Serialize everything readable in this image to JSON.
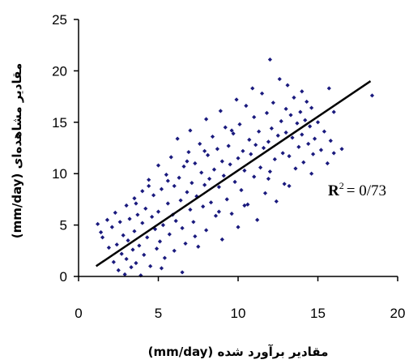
{
  "chart_data": {
    "type": "scatter",
    "title": "",
    "xlabel": "مقادیر برآورد شده (mm/day)",
    "ylabel": "مقادیر مشاهده‌ای (mm/day)",
    "xlim": [
      0,
      20
    ],
    "ylim": [
      0,
      25
    ],
    "xticks": [
      "0",
      "5",
      "10",
      "15",
      "20"
    ],
    "yticks": [
      "0",
      "5",
      "10",
      "15",
      "20",
      "25"
    ],
    "grid": false,
    "marker_color": "#1a1a7e",
    "line_color": "#000000",
    "trendline": {
      "x": [
        1.1,
        18.3
      ],
      "y": [
        1.0,
        19.0
      ]
    },
    "annotation": {
      "prefix": "R",
      "sup": "2",
      "value": "= 0/73"
    },
    "series": [
      {
        "points": [
          [
            1.2,
            5.1
          ],
          [
            1.4,
            4.3
          ],
          [
            1.5,
            3.8
          ],
          [
            1.8,
            5.5
          ],
          [
            1.9,
            2.8
          ],
          [
            2.1,
            4.8
          ],
          [
            2.2,
            1.4
          ],
          [
            2.3,
            6.2
          ],
          [
            2.4,
            3.1
          ],
          [
            2.5,
            0.6
          ],
          [
            2.6,
            5.3
          ],
          [
            2.7,
            2.2
          ],
          [
            2.8,
            4.0
          ],
          [
            2.9,
            0.2
          ],
          [
            3.0,
            6.9
          ],
          [
            3.0,
            1.7
          ],
          [
            3.1,
            3.5
          ],
          [
            3.2,
            5.6
          ],
          [
            3.3,
            0.9
          ],
          [
            3.4,
            2.6
          ],
          [
            3.5,
            7.6
          ],
          [
            3.5,
            4.4
          ],
          [
            3.6,
            1.3
          ],
          [
            3.7,
            6.0
          ],
          [
            3.8,
            3.0
          ],
          [
            3.9,
            0.1
          ],
          [
            4.0,
            8.3
          ],
          [
            4.0,
            5.2
          ],
          [
            4.1,
            2.1
          ],
          [
            4.2,
            6.6
          ],
          [
            4.3,
            3.8
          ],
          [
            4.4,
            9.4
          ],
          [
            4.5,
            1.0
          ],
          [
            4.6,
            5.8
          ],
          [
            4.7,
            7.9
          ],
          [
            4.8,
            4.6
          ],
          [
            4.9,
            2.7
          ],
          [
            5.0,
            10.8
          ],
          [
            5.0,
            6.3
          ],
          [
            5.1,
            3.4
          ],
          [
            5.2,
            8.5
          ],
          [
            5.3,
            5.0
          ],
          [
            5.4,
            1.8
          ],
          [
            5.5,
            9.9
          ],
          [
            5.6,
            7.1
          ],
          [
            5.7,
            4.1
          ],
          [
            5.8,
            11.6
          ],
          [
            5.9,
            6.0
          ],
          [
            6.0,
            8.8
          ],
          [
            6.0,
            2.5
          ],
          [
            6.1,
            5.4
          ],
          [
            6.2,
            13.4
          ],
          [
            6.3,
            9.6
          ],
          [
            6.4,
            7.4
          ],
          [
            6.5,
            4.7
          ],
          [
            6.6,
            10.7
          ],
          [
            6.7,
            3.2
          ],
          [
            6.8,
            8.2
          ],
          [
            6.9,
            12.1
          ],
          [
            7.0,
            6.5
          ],
          [
            7.0,
            14.2
          ],
          [
            7.1,
            9.1
          ],
          [
            7.2,
            5.3
          ],
          [
            7.3,
            11.0
          ],
          [
            7.4,
            7.8
          ],
          [
            7.5,
            2.9
          ],
          [
            7.6,
            12.9
          ],
          [
            7.7,
            10.1
          ],
          [
            7.8,
            6.8
          ],
          [
            7.9,
            8.9
          ],
          [
            8.0,
            15.3
          ],
          [
            8.0,
            4.5
          ],
          [
            8.1,
            11.8
          ],
          [
            8.2,
            9.5
          ],
          [
            8.3,
            7.2
          ],
          [
            8.4,
            13.6
          ],
          [
            8.5,
            10.4
          ],
          [
            8.6,
            5.9
          ],
          [
            8.7,
            12.4
          ],
          [
            8.8,
            8.7
          ],
          [
            8.9,
            16.1
          ],
          [
            9.0,
            11.2
          ],
          [
            9.0,
            3.6
          ],
          [
            9.1,
            9.8
          ],
          [
            9.2,
            14.5
          ],
          [
            9.3,
            7.5
          ],
          [
            9.4,
            12.7
          ],
          [
            9.5,
            10.9
          ],
          [
            9.6,
            6.1
          ],
          [
            9.7,
            13.9
          ],
          [
            9.8,
            9.2
          ],
          [
            9.9,
            17.2
          ],
          [
            10.0,
            11.5
          ],
          [
            10.0,
            4.8
          ],
          [
            10.1,
            14.8
          ],
          [
            10.2,
            8.4
          ],
          [
            10.3,
            12.2
          ],
          [
            10.4,
            10.3
          ],
          [
            10.5,
            16.6
          ],
          [
            10.6,
            7.0
          ],
          [
            10.7,
            13.3
          ],
          [
            10.8,
            11.9
          ],
          [
            10.9,
            18.3
          ],
          [
            11.0,
            9.7
          ],
          [
            11.0,
            15.5
          ],
          [
            11.1,
            12.8
          ],
          [
            11.2,
            5.5
          ],
          [
            11.3,
            14.1
          ],
          [
            11.4,
            10.6
          ],
          [
            11.5,
            17.8
          ],
          [
            11.6,
            12.5
          ],
          [
            11.7,
            8.1
          ],
          [
            11.8,
            15.9
          ],
          [
            11.9,
            13.1
          ],
          [
            12.0,
            21.1
          ],
          [
            12.0,
            10.2
          ],
          [
            12.1,
            14.4
          ],
          [
            12.2,
            16.9
          ],
          [
            12.3,
            11.4
          ],
          [
            12.4,
            7.3
          ],
          [
            12.5,
            13.7
          ],
          [
            12.6,
            19.2
          ],
          [
            12.7,
            15.1
          ],
          [
            12.8,
            12.0
          ],
          [
            12.9,
            9.0
          ],
          [
            13.0,
            16.3
          ],
          [
            13.0,
            14.0
          ],
          [
            13.1,
            18.6
          ],
          [
            13.2,
            11.7
          ],
          [
            13.3,
            15.7
          ],
          [
            13.4,
            13.5
          ],
          [
            13.5,
            17.4
          ],
          [
            13.6,
            10.5
          ],
          [
            13.7,
            14.9
          ],
          [
            13.8,
            12.6
          ],
          [
            13.9,
            16.0
          ],
          [
            14.0,
            18.0
          ],
          [
            14.0,
            13.8
          ],
          [
            14.1,
            11.1
          ],
          [
            14.2,
            15.2
          ],
          [
            14.3,
            17.0
          ],
          [
            14.4,
            12.9
          ],
          [
            14.5,
            14.6
          ],
          [
            14.6,
            16.4
          ],
          [
            14.7,
            11.9
          ],
          [
            14.8,
            13.4
          ],
          [
            15.0,
            15.0
          ],
          [
            15.2,
            12.3
          ],
          [
            15.4,
            14.1
          ],
          [
            15.6,
            11.0
          ],
          [
            15.8,
            13.2
          ],
          [
            16.0,
            12.0
          ],
          [
            16.5,
            12.4
          ],
          [
            16.0,
            16.0
          ],
          [
            15.7,
            18.3
          ],
          [
            18.4,
            17.6
          ],
          [
            6.5,
            0.4
          ],
          [
            5.2,
            0.8
          ],
          [
            7.3,
            3.9
          ],
          [
            8.8,
            6.3
          ],
          [
            10.4,
            6.9
          ],
          [
            11.9,
            9.5
          ],
          [
            13.2,
            8.8
          ],
          [
            14.6,
            10.0
          ],
          [
            9.6,
            14.2
          ],
          [
            7.9,
            12.2
          ],
          [
            6.8,
            11.2
          ],
          [
            5.6,
            9.3
          ],
          [
            4.4,
            8.8
          ],
          [
            3.6,
            7.1
          ]
        ]
      }
    ]
  }
}
